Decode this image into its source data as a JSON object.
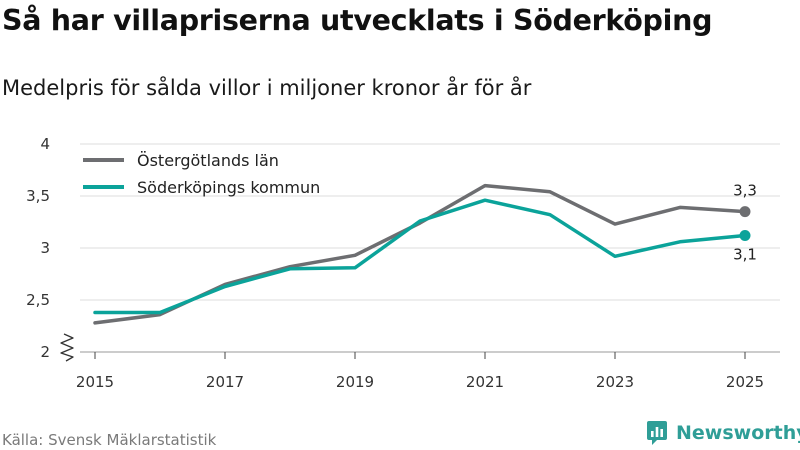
{
  "title": "Så har villapriserna utvecklats i Söderköping",
  "subtitle": "Medelpris för sålda villor i miljoner kronor år för år",
  "source": "Källa: Svensk Mäklarstatistik",
  "brand": "Newsworthy",
  "colors": {
    "ostergotland": "#6d6e71",
    "soderkoping": "#0ba39a",
    "grid": "#dcdcdc",
    "brand": "#2f9e97"
  },
  "chart_data": {
    "type": "line",
    "title": "Så har villapriserna utvecklats i Söderköping",
    "xlabel": "",
    "ylabel": "",
    "x": [
      2015,
      2016,
      2017,
      2018,
      2019,
      2020,
      2021,
      2022,
      2023,
      2024,
      2025
    ],
    "x_ticks": [
      "2015",
      "2017",
      "2019",
      "2021",
      "2023",
      "2025"
    ],
    "ylim": [
      2,
      4
    ],
    "y_ticks": [
      "2",
      "2,5",
      "3",
      "3,5",
      "4"
    ],
    "legend_position": "top-left",
    "series": [
      {
        "name": "Östergötlands län",
        "color": "#6d6e71",
        "values": [
          2.28,
          2.36,
          2.65,
          2.82,
          2.93,
          3.24,
          3.6,
          3.54,
          3.23,
          3.39,
          3.35
        ],
        "end_label": "3,3"
      },
      {
        "name": "Söderköpings kommun",
        "color": "#0ba39a",
        "values": [
          2.38,
          2.38,
          2.63,
          2.8,
          2.81,
          3.26,
          3.46,
          3.32,
          2.92,
          3.06,
          3.12
        ],
        "end_label": "3,1"
      }
    ]
  }
}
